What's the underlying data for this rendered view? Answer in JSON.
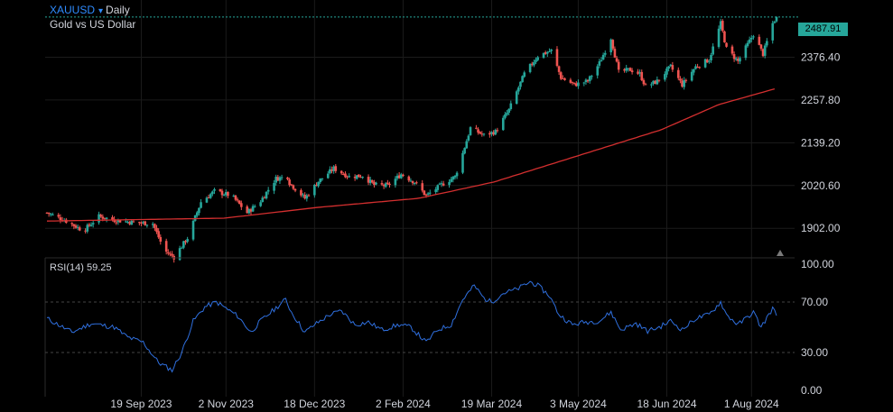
{
  "header": {
    "symbol": "XAUUSD",
    "caret": "▾",
    "interval": "Daily",
    "description": "Gold vs US Dollar"
  },
  "rsi_label": "RSI(14) 59.25",
  "last_price_label": "2487.91",
  "colors": {
    "background": "#000000",
    "up": "#26a69a",
    "down": "#ef5350",
    "ma_line": "#d32f2f",
    "rsi_line": "#2f6fde",
    "axis_text": "#d1d4dc",
    "grid": "#1b1b1b",
    "dashed": "#444444",
    "price_line": "#26a69a",
    "symbol": "#2f8cff"
  },
  "chart_data": [
    {
      "type": "candlestick",
      "title": "XAUUSD Daily",
      "subtitle": "Gold vs US Dollar",
      "y_ticks": [
        "2376.40",
        "2257.80",
        "2139.20",
        "2020.60",
        "1902.00"
      ],
      "x_ticks": [
        "19 Sep 2023",
        "2 Nov 2023",
        "18 Dec 2023",
        "2 Feb 2024",
        "19 Mar 2024",
        "3 May 2024",
        "18 Jun 2024",
        "1 Aug 2024"
      ],
      "ylim": [
        1820,
        2535
      ],
      "x_range": [
        "2023-08-01",
        "2024-08-14"
      ],
      "last_price": 2487.91,
      "grid": true,
      "anchors": [
        [
          "2023-08-01",
          1945
        ],
        [
          "2023-08-10",
          1925
        ],
        [
          "2023-08-20",
          1895
        ],
        [
          "2023-08-28",
          1935
        ],
        [
          "2023-09-05",
          1925
        ],
        [
          "2023-09-15",
          1918
        ],
        [
          "2023-09-25",
          1915
        ],
        [
          "2023-10-01",
          1840
        ],
        [
          "2023-10-06",
          1822
        ],
        [
          "2023-10-13",
          1875
        ],
        [
          "2023-10-20",
          1975
        ],
        [
          "2023-10-27",
          2005
        ],
        [
          "2023-11-05",
          1992
        ],
        [
          "2023-11-13",
          1945
        ],
        [
          "2023-11-20",
          1978
        ],
        [
          "2023-11-28",
          2040
        ],
        [
          "2023-12-04",
          2045
        ],
        [
          "2023-12-05",
          2028
        ],
        [
          "2023-12-13",
          1985
        ],
        [
          "2023-12-20",
          2032
        ],
        [
          "2023-12-28",
          2068
        ],
        [
          "2024-01-05",
          2045
        ],
        [
          "2024-01-12",
          2048
        ],
        [
          "2024-01-18",
          2022
        ],
        [
          "2024-01-25",
          2020
        ],
        [
          "2024-02-01",
          2052
        ],
        [
          "2024-02-08",
          2030
        ],
        [
          "2024-02-14",
          1992
        ],
        [
          "2024-02-22",
          2023
        ],
        [
          "2024-02-29",
          2045
        ],
        [
          "2024-03-04",
          2110
        ],
        [
          "2024-03-08",
          2180
        ],
        [
          "2024-03-15",
          2160
        ],
        [
          "2024-03-21",
          2170
        ],
        [
          "2024-03-28",
          2230
        ],
        [
          "2024-04-05",
          2330
        ],
        [
          "2024-04-12",
          2380
        ],
        [
          "2024-04-19",
          2395
        ],
        [
          "2024-04-24",
          2320
        ],
        [
          "2024-05-01",
          2300
        ],
        [
          "2024-05-08",
          2310
        ],
        [
          "2024-05-14",
          2360
        ],
        [
          "2024-05-20",
          2430
        ],
        [
          "2024-05-24",
          2335
        ],
        [
          "2024-05-30",
          2342
        ],
        [
          "2024-06-04",
          2330
        ],
        [
          "2024-06-07",
          2295
        ],
        [
          "2024-06-13",
          2310
        ],
        [
          "2024-06-20",
          2350
        ],
        [
          "2024-06-26",
          2300
        ],
        [
          "2024-07-03",
          2350
        ],
        [
          "2024-07-10",
          2370
        ],
        [
          "2024-07-16",
          2470
        ],
        [
          "2024-07-19",
          2400
        ],
        [
          "2024-07-25",
          2365
        ],
        [
          "2024-08-02",
          2440
        ],
        [
          "2024-08-07",
          2385
        ],
        [
          "2024-08-12",
          2470
        ],
        [
          "2024-08-14",
          2488
        ]
      ],
      "ma_anchors": [
        [
          "2023-08-01",
          1922
        ],
        [
          "2023-11-01",
          1930
        ],
        [
          "2023-12-20",
          1960
        ],
        [
          "2024-02-10",
          1985
        ],
        [
          "2024-03-20",
          2030
        ],
        [
          "2024-05-01",
          2100
        ],
        [
          "2024-06-15",
          2175
        ],
        [
          "2024-07-15",
          2245
        ],
        [
          "2024-08-14",
          2290
        ]
      ]
    },
    {
      "type": "line",
      "title": "RSI(14)",
      "last_value": 59.25,
      "y_ticks": [
        "100.00",
        "70.00",
        "30.00",
        "0.00"
      ],
      "ylim": [
        0,
        100
      ],
      "reference_lines": [
        70,
        30
      ],
      "anchors": [
        [
          "2023-08-01",
          57
        ],
        [
          "2023-08-14",
          46
        ],
        [
          "2023-08-24",
          53
        ],
        [
          "2023-09-05",
          50
        ],
        [
          "2023-09-12",
          42
        ],
        [
          "2023-09-20",
          38
        ],
        [
          "2023-09-28",
          22
        ],
        [
          "2023-10-05",
          16
        ],
        [
          "2023-10-10",
          30
        ],
        [
          "2023-10-16",
          55
        ],
        [
          "2023-10-22",
          66
        ],
        [
          "2023-10-28",
          70
        ],
        [
          "2023-11-03",
          64
        ],
        [
          "2023-11-08",
          59
        ],
        [
          "2023-11-15",
          46
        ],
        [
          "2023-11-20",
          55
        ],
        [
          "2023-11-27",
          64
        ],
        [
          "2023-12-03",
          72
        ],
        [
          "2023-12-06",
          62
        ],
        [
          "2023-12-13",
          46
        ],
        [
          "2023-12-18",
          52
        ],
        [
          "2023-12-26",
          60
        ],
        [
          "2024-01-01",
          63
        ],
        [
          "2024-01-08",
          52
        ],
        [
          "2024-01-15",
          54
        ],
        [
          "2024-01-22",
          48
        ],
        [
          "2024-01-31",
          52
        ],
        [
          "2024-02-06",
          50
        ],
        [
          "2024-02-14",
          38
        ],
        [
          "2024-02-20",
          48
        ],
        [
          "2024-02-27",
          52
        ],
        [
          "2024-03-04",
          72
        ],
        [
          "2024-03-10",
          83
        ],
        [
          "2024-03-15",
          73
        ],
        [
          "2024-03-19",
          70
        ],
        [
          "2024-03-25",
          77
        ],
        [
          "2024-04-01",
          80
        ],
        [
          "2024-04-08",
          86
        ],
        [
          "2024-04-12",
          83
        ],
        [
          "2024-04-18",
          75
        ],
        [
          "2024-04-23",
          60
        ],
        [
          "2024-04-30",
          52
        ],
        [
          "2024-05-06",
          54
        ],
        [
          "2024-05-14",
          55
        ],
        [
          "2024-05-20",
          62
        ],
        [
          "2024-05-25",
          48
        ],
        [
          "2024-06-02",
          53
        ],
        [
          "2024-06-08",
          47
        ],
        [
          "2024-06-14",
          50
        ],
        [
          "2024-06-20",
          55
        ],
        [
          "2024-06-26",
          48
        ],
        [
          "2024-07-03",
          57
        ],
        [
          "2024-07-10",
          60
        ],
        [
          "2024-07-16",
          70
        ],
        [
          "2024-07-19",
          60
        ],
        [
          "2024-07-25",
          52
        ],
        [
          "2024-08-02",
          62
        ],
        [
          "2024-08-06",
          50
        ],
        [
          "2024-08-12",
          65
        ],
        [
          "2024-08-14",
          59.25
        ]
      ]
    }
  ]
}
